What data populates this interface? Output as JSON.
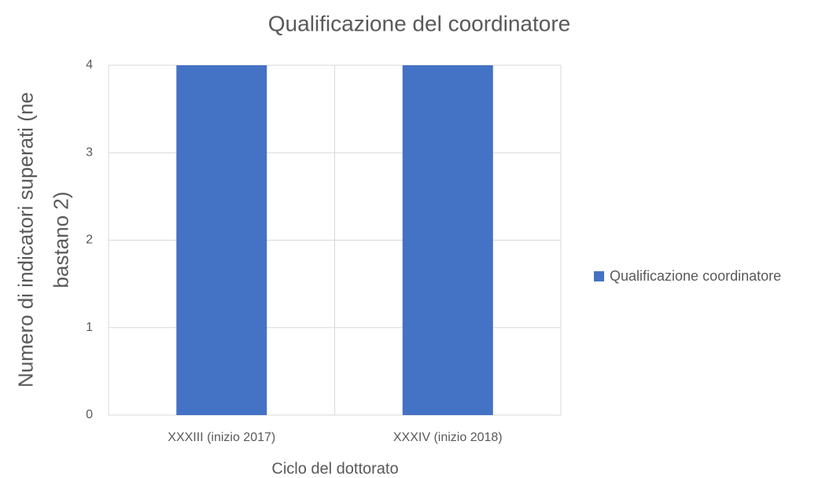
{
  "chart_data": {
    "type": "bar",
    "title": "Qualificazione del coordinatore",
    "xlabel": "Ciclo del dottorato",
    "ylabel": "Numero di indicatori superati (ne bastano 2)",
    "categories": [
      "XXXIII (inizio 2017)",
      "XXXIV (inizio 2018)"
    ],
    "series": [
      {
        "name": "Qualificazione coordinatore",
        "color": "#4472c4",
        "values": [
          4,
          4
        ]
      }
    ],
    "ylim": [
      0,
      4
    ],
    "yticks": [
      0,
      1,
      2,
      3,
      4
    ],
    "grid": true,
    "legend": "right"
  }
}
